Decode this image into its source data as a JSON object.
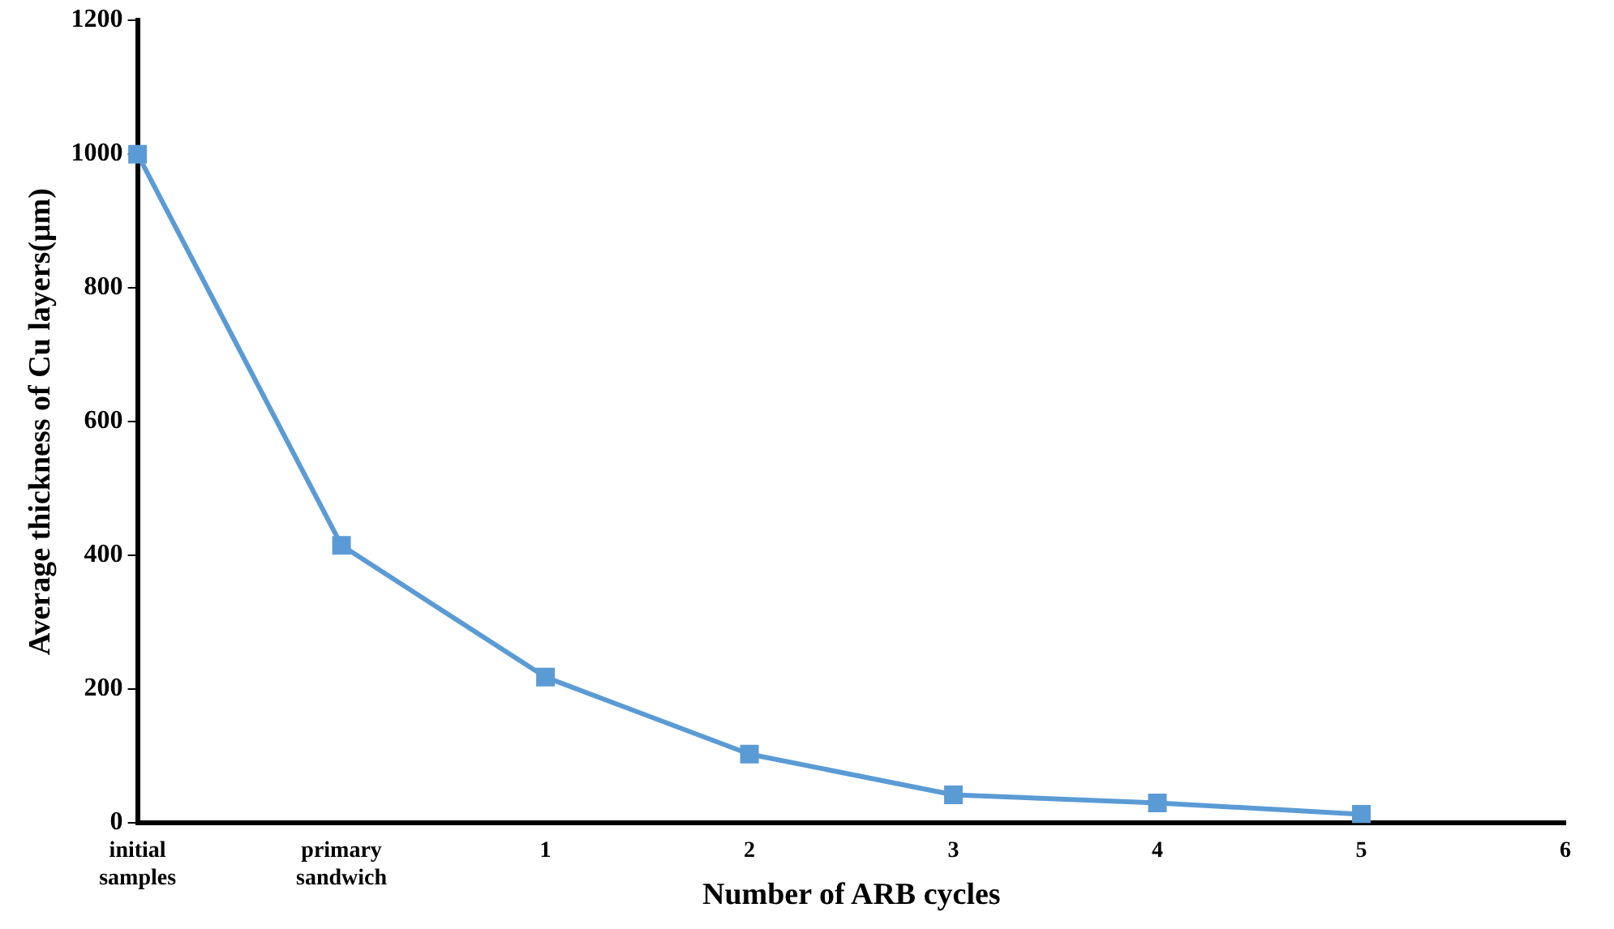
{
  "chart_data": {
    "type": "line",
    "xlabel": "Number of ARB cycles",
    "ylabel": "Average thickness of Cu layers(μm)",
    "categories": [
      "initial samples",
      "primary sandwich",
      "1",
      "2",
      "3",
      "4",
      "5",
      "6"
    ],
    "series": [
      {
        "color": "#5b9bd5",
        "values": [
          1000,
          415,
          218,
          103,
          42,
          30,
          13,
          null
        ]
      }
    ],
    "ylim": [
      0,
      1200
    ],
    "yticks": [
      0,
      200,
      400,
      600,
      800,
      1000,
      1200
    ],
    "grid": false,
    "legend": false,
    "marker": "square",
    "line_style": "solid"
  }
}
